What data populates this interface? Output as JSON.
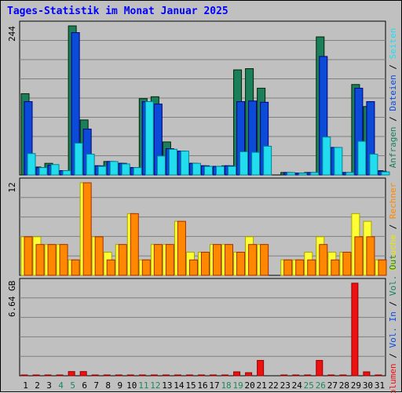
{
  "title": "Tages-Statistik im Monat Januar 2025",
  "colors": {
    "background": "#c0c0c0",
    "grid": "#808080",
    "anfragen": "#1a7f5a",
    "dateien": "#0b4bd8",
    "seiten": "#22ddee",
    "besuche": "#ffff33",
    "rechner": "#ff8800",
    "volumen": "#ee1111",
    "weekend": "#1a8a5a",
    "weekday": "#000000"
  },
  "chart_data": [
    {
      "type": "bar",
      "panel": "top",
      "categories": [
        "1",
        "2",
        "3",
        "4",
        "5",
        "6",
        "7",
        "8",
        "9",
        "10",
        "11",
        "12",
        "13",
        "14",
        "15",
        "16",
        "17",
        "18",
        "19",
        "20",
        "21",
        "22",
        "23",
        "24",
        "25",
        "26",
        "27",
        "28",
        "29",
        "30",
        "31"
      ],
      "weekend_days": [
        "4",
        "5",
        "11",
        "12",
        "18",
        "19",
        "25",
        "26"
      ],
      "ylim": [
        0,
        244
      ],
      "tick_label": "244",
      "series": [
        {
          "name": "Anfragen",
          "values": [
            133,
            13,
            19,
            7,
            244,
            90,
            15,
            22,
            19,
            12,
            125,
            128,
            54,
            39,
            19,
            15,
            14,
            15,
            172,
            174,
            142,
            0,
            4,
            3,
            4,
            226,
            45,
            4,
            148,
            112,
            7
          ]
        },
        {
          "name": "Dateien",
          "values": [
            120,
            12,
            16,
            7,
            233,
            75,
            15,
            22,
            19,
            12,
            120,
            116,
            43,
            39,
            19,
            15,
            14,
            15,
            120,
            121,
            119,
            0,
            4,
            3,
            4,
            194,
            45,
            4,
            142,
            120,
            6
          ]
        },
        {
          "name": "Seiten",
          "values": [
            35,
            12,
            17,
            7,
            52,
            34,
            14,
            22,
            18,
            12,
            120,
            31,
            42,
            39,
            19,
            14,
            14,
            14,
            38,
            37,
            47,
            0,
            4,
            3,
            4,
            62,
            45,
            4,
            55,
            34,
            5
          ]
        }
      ]
    },
    {
      "type": "bar",
      "panel": "middle",
      "categories": [
        "1",
        "2",
        "3",
        "4",
        "5",
        "6",
        "7",
        "8",
        "9",
        "10",
        "11",
        "12",
        "13",
        "14",
        "15",
        "16",
        "17",
        "18",
        "19",
        "20",
        "21",
        "22",
        "23",
        "24",
        "25",
        "26",
        "27",
        "28",
        "29",
        "30",
        "31"
      ],
      "ylim": [
        0,
        12
      ],
      "tick_label": "12",
      "series": [
        {
          "name": "Besuche",
          "values": [
            5,
            5,
            4,
            4,
            2,
            12,
            5,
            3,
            4,
            8,
            2,
            4,
            4,
            7,
            3,
            3,
            4,
            4,
            3,
            5,
            4,
            0,
            2,
            2,
            3,
            5,
            3,
            3,
            8,
            7,
            2
          ]
        },
        {
          "name": "Rechner",
          "values": [
            5,
            4,
            4,
            4,
            2,
            12,
            5,
            2,
            4,
            8,
            2,
            4,
            4,
            7,
            2,
            3,
            4,
            4,
            3,
            4,
            4,
            0,
            2,
            2,
            2,
            4,
            2,
            3,
            5,
            5,
            2
          ]
        }
      ]
    },
    {
      "type": "bar",
      "panel": "bottom",
      "categories": [
        "1",
        "2",
        "3",
        "4",
        "5",
        "6",
        "7",
        "8",
        "9",
        "10",
        "11",
        "12",
        "13",
        "14",
        "15",
        "16",
        "17",
        "18",
        "19",
        "20",
        "21",
        "22",
        "23",
        "24",
        "25",
        "26",
        "27",
        "28",
        "29",
        "30",
        "31"
      ],
      "ylim": [
        0,
        6.64
      ],
      "tick_label": "6.64 GB",
      "series": [
        {
          "name": "Volumen",
          "values": [
            0.05,
            0.05,
            0.05,
            0.05,
            0.3,
            0.3,
            0.05,
            0.05,
            0.05,
            0.05,
            0.05,
            0.05,
            0.05,
            0.05,
            0.05,
            0.05,
            0.05,
            0.05,
            0.28,
            0.22,
            1.1,
            0.0,
            0.05,
            0.05,
            0.05,
            1.1,
            0.05,
            0.05,
            6.64,
            0.28,
            0.05
          ]
        }
      ]
    }
  ],
  "right_labels": {
    "top": [
      {
        "text": "Anfragen",
        "color": "#1a7f5a"
      },
      {
        "text": " / ",
        "color": "#000000"
      },
      {
        "text": "Dateien",
        "color": "#0b4bd8"
      },
      {
        "text": " / ",
        "color": "#000000"
      },
      {
        "text": "Seiten",
        "color": "#22ddee"
      }
    ],
    "middle": [
      {
        "text": "Besuche",
        "color": "#e8e800"
      },
      {
        "text": " / ",
        "color": "#000000"
      },
      {
        "text": "Rechner",
        "color": "#ff8800"
      }
    ],
    "bottom": [
      {
        "text": "Volumen",
        "color": "#ee1111"
      },
      {
        "text": " / ",
        "color": "#000000"
      },
      {
        "text": "Vol. In",
        "color": "#0b4bd8"
      },
      {
        "text": " / ",
        "color": "#000000"
      },
      {
        "text": "Vol. Out",
        "color": "#1a7f5a"
      }
    ]
  }
}
